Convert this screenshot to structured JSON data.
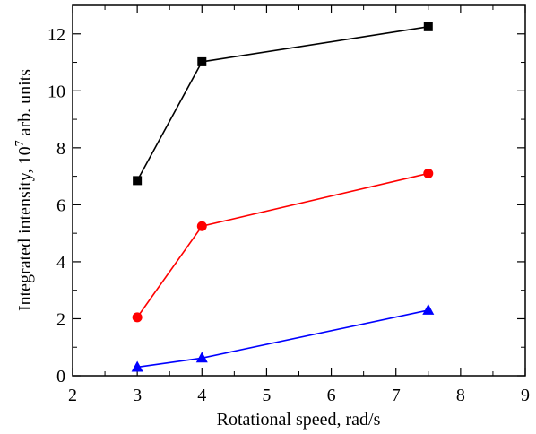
{
  "chart_data": {
    "type": "line",
    "xlabel": "Rotational speed, rad/s",
    "ylabel_main": "Integrated intensity, 10",
    "ylabel_sup": "7",
    "ylabel_tail": " arb. units",
    "xlim": [
      2,
      9
    ],
    "ylim": [
      0,
      13
    ],
    "xticks": [
      2,
      3,
      4,
      5,
      6,
      7,
      8,
      9
    ],
    "yticks": [
      0,
      2,
      4,
      6,
      8,
      10,
      12
    ],
    "grid": false,
    "series": [
      {
        "marker": "square",
        "color": "#000000",
        "x": [
          3,
          4,
          7.5
        ],
        "y": [
          6.85,
          11.02,
          12.25
        ]
      },
      {
        "marker": "circle",
        "color": "#ff0000",
        "x": [
          3,
          4,
          7.5
        ],
        "y": [
          2.05,
          5.25,
          7.1
        ]
      },
      {
        "marker": "triangle",
        "color": "#0000ff",
        "x": [
          3,
          4,
          7.5
        ],
        "y": [
          0.3,
          0.62,
          2.3
        ]
      }
    ]
  }
}
